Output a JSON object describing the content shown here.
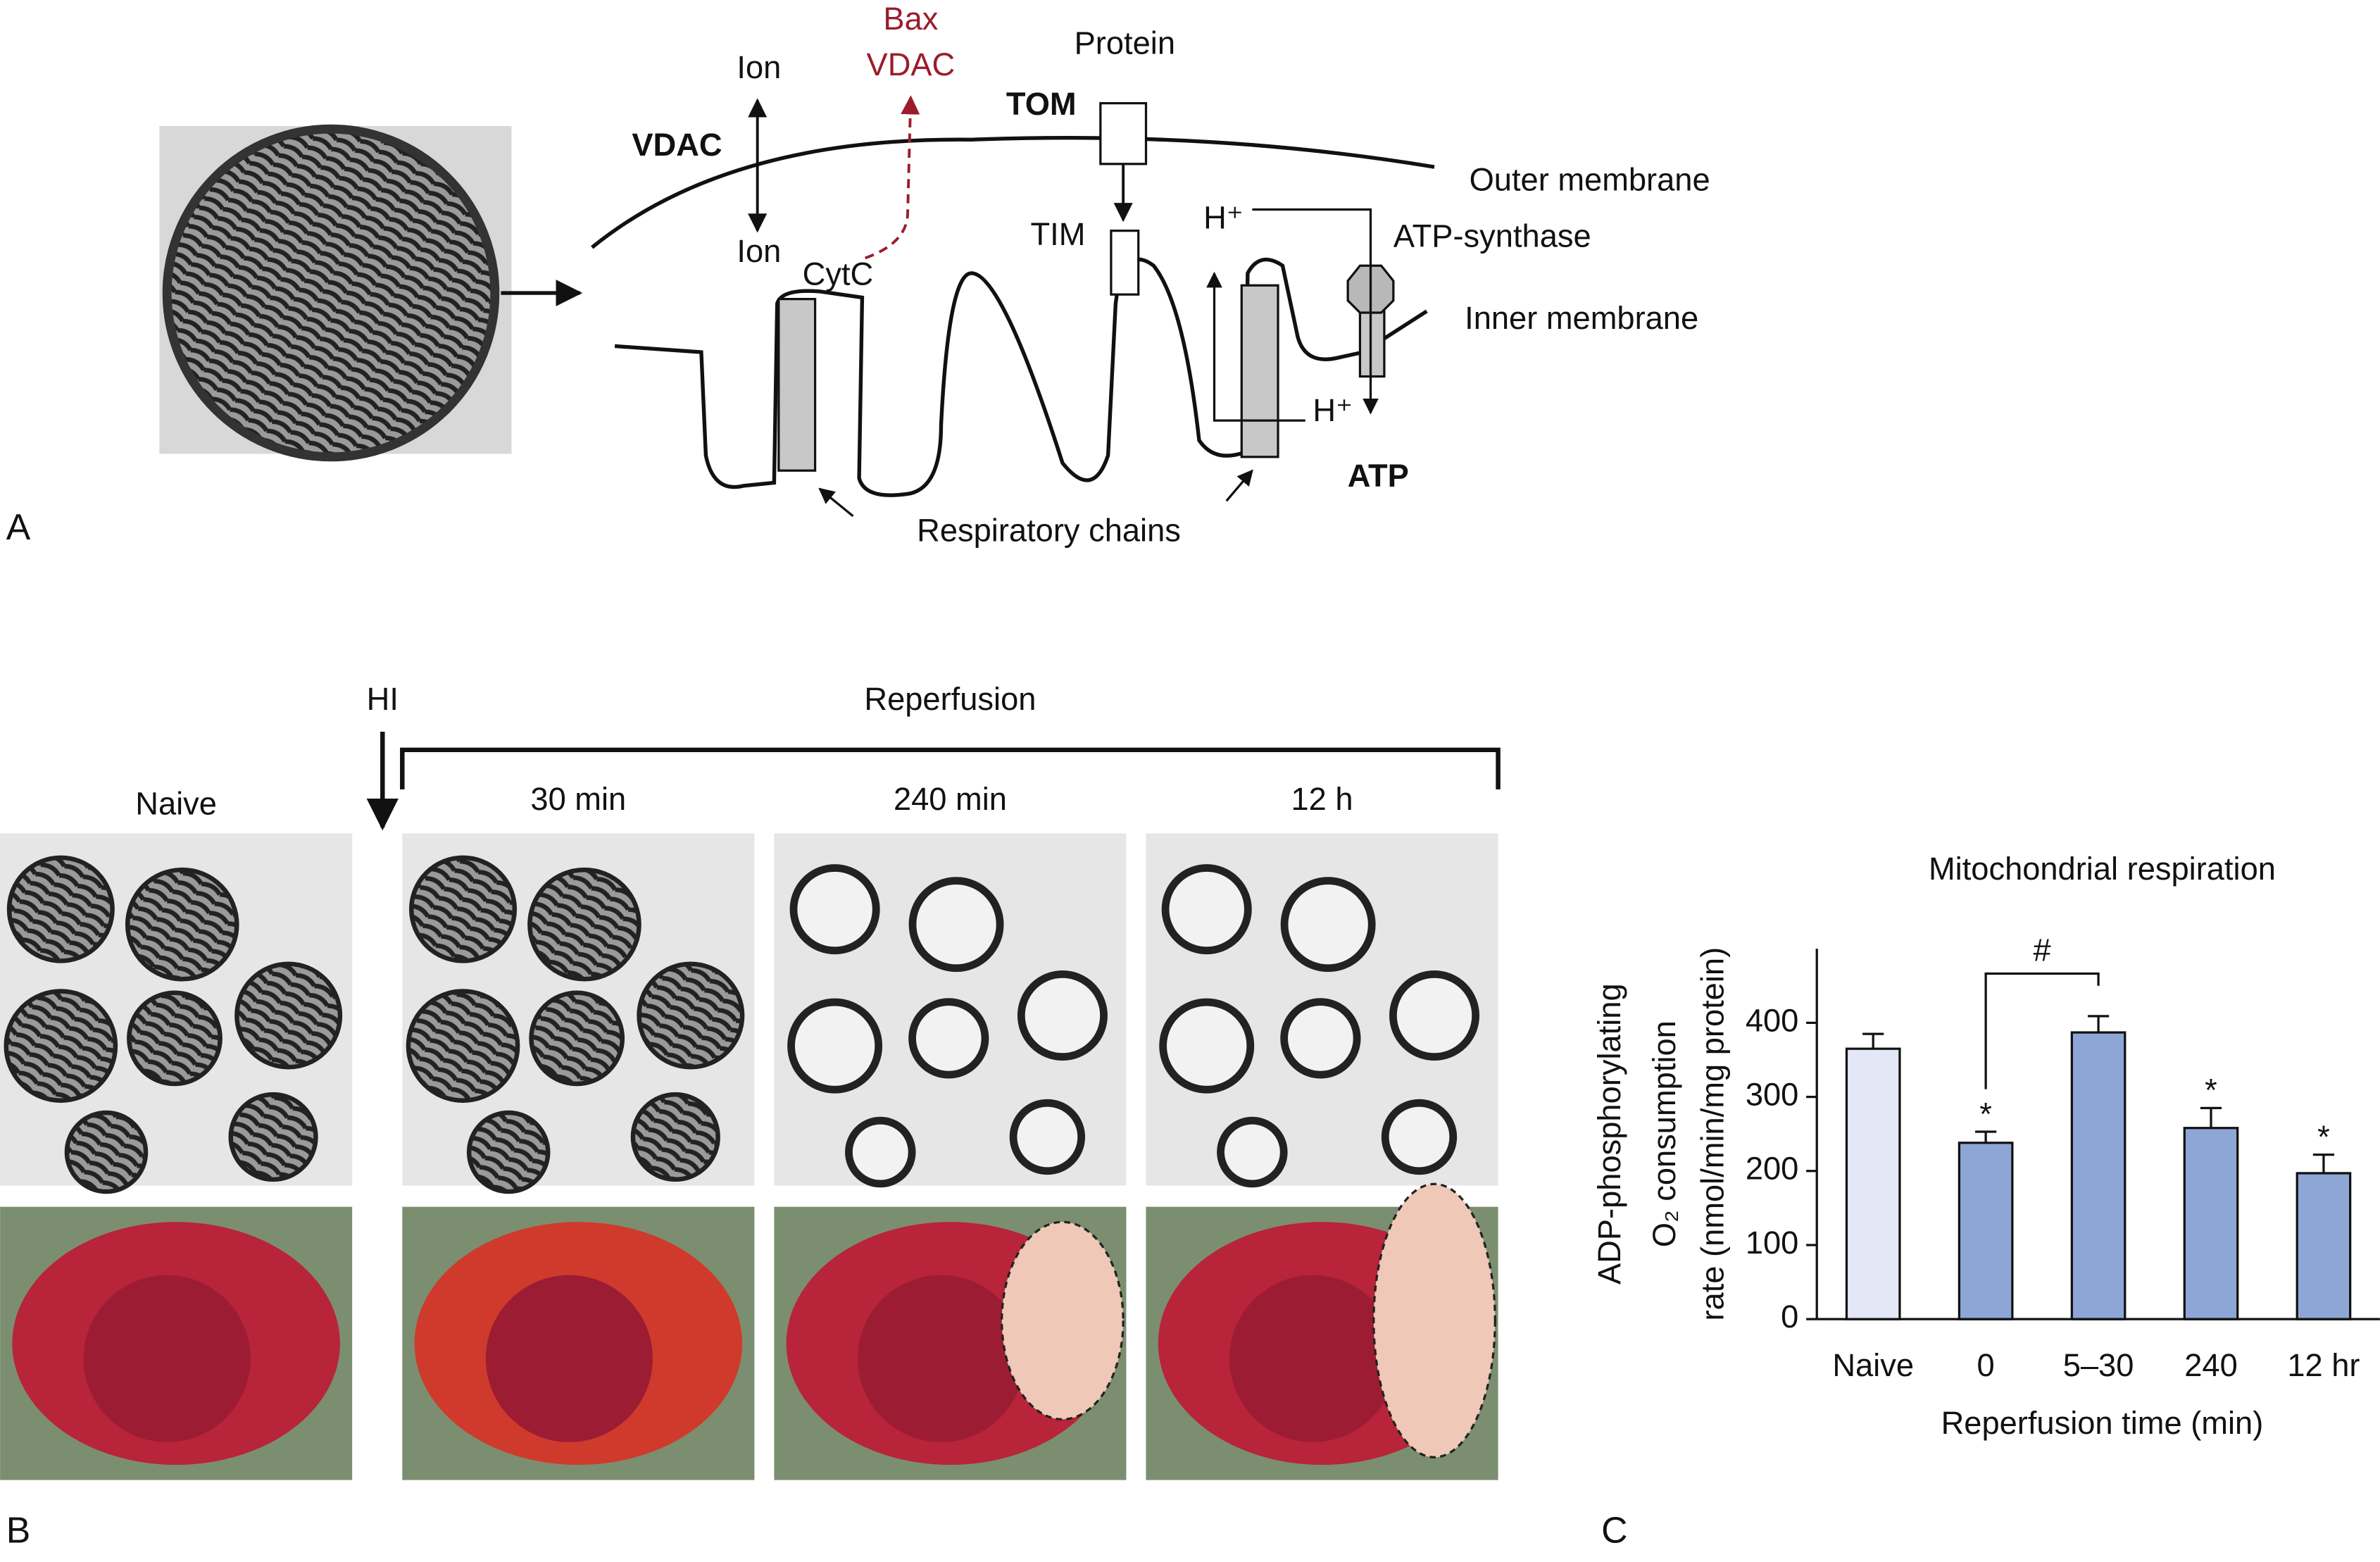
{
  "panel_a": {
    "label": "A",
    "ion_top": "Ion",
    "ion_bottom": "Ion",
    "bax": "Bax",
    "bax_vdac": "VDAC",
    "protein": "Protein",
    "tom": "TOM",
    "vdac": "VDAC",
    "outer_membrane": "Outer membrane",
    "tim": "TIM",
    "cytc": "CytC",
    "h_plus_top": "H⁺",
    "atp_synthase": "ATP-synthase",
    "inner_membrane": "Inner membrane",
    "h_plus_bottom": "H⁺",
    "atp": "ATP",
    "respiratory_chains": "Respiratory chains"
  },
  "panel_b": {
    "label": "B",
    "hi": "HI",
    "reperfusion": "Reperfusion",
    "columns": [
      "Naive",
      "30 min",
      "240 min",
      "12 h"
    ]
  },
  "panel_c": {
    "label": "C"
  },
  "chart_data": {
    "type": "bar",
    "title": "Mitochondrial respiration",
    "y_label": [
      "ADP-phosphorylating",
      "O₂ consumption",
      "rate (nmol/min/mg protein)"
    ],
    "x_label": "Reperfusion time (min)",
    "categories": [
      "Naive",
      "0",
      "5–30",
      "240",
      "12 hr"
    ],
    "values": [
      365,
      238,
      387,
      258,
      197
    ],
    "errors": [
      20,
      15,
      22,
      27,
      25
    ],
    "colors": [
      "#e4e8f6",
      "#8ea6d6",
      "#8ea6d6",
      "#8ea6d6",
      "#8ea6d6"
    ],
    "significance": [
      null,
      "*",
      null,
      "*",
      "*"
    ],
    "bracket_label": "#",
    "ylim": [
      0,
      500
    ],
    "yticks": [
      0,
      100,
      200,
      300,
      400
    ]
  }
}
